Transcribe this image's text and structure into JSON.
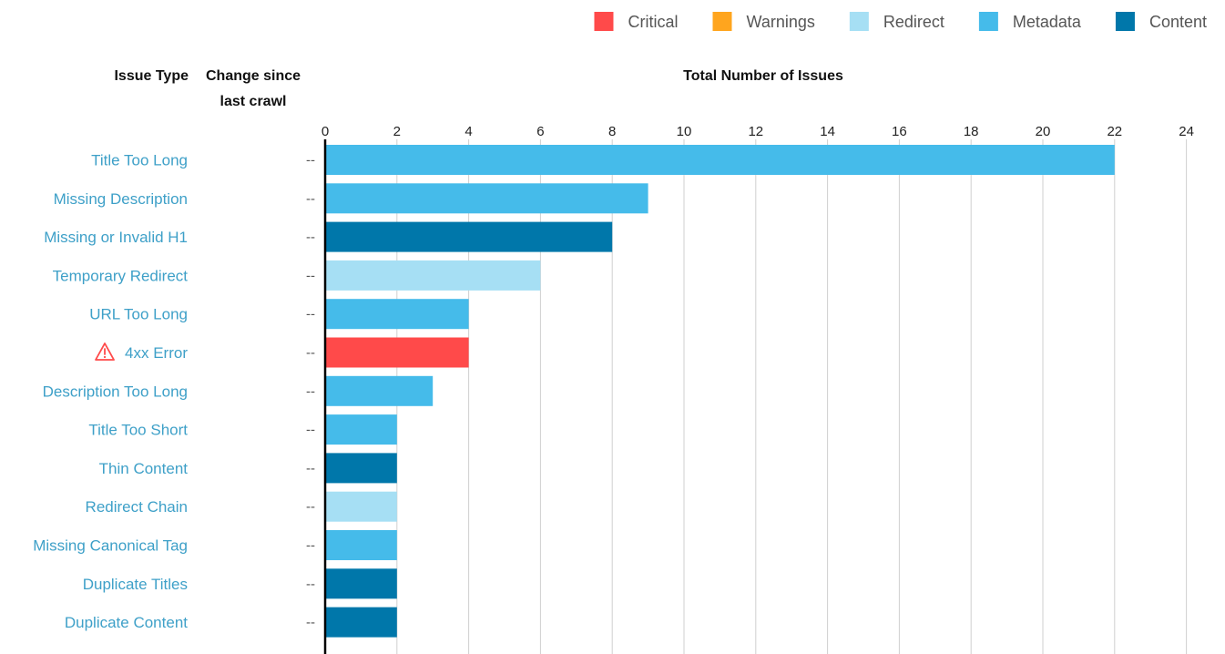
{
  "legend": [
    {
      "label": "Critical",
      "color": "#ff4a4a"
    },
    {
      "label": "Warnings",
      "color": "#ffa51e"
    },
    {
      "label": "Redirect",
      "color": "#a6dff4"
    },
    {
      "label": "Metadata",
      "color": "#45bbea"
    },
    {
      "label": "Content",
      "color": "#0077aa"
    }
  ],
  "headers": {
    "issue_type": "Issue Type",
    "change_line1": "Change since",
    "change_line2": "last crawl",
    "total": "Total Number of Issues"
  },
  "chart_data": {
    "type": "bar",
    "orientation": "horizontal",
    "title": "",
    "xlabel": "Total Number of Issues",
    "ylabel": "Issue Type",
    "xlim": [
      0,
      24
    ],
    "xticks": [
      0,
      2,
      4,
      6,
      8,
      10,
      12,
      14,
      16,
      18,
      20,
      22,
      24
    ],
    "grid": true,
    "legend_position": "top-right",
    "categories": [
      "Title Too Long",
      "Missing Description",
      "Missing or Invalid H1",
      "Temporary Redirect",
      "URL Too Long",
      "4xx Error",
      "Description Too Long",
      "Title Too Short",
      "Thin Content",
      "Redirect Chain",
      "Missing Canonical Tag",
      "Duplicate Titles",
      "Duplicate Content"
    ],
    "values": [
      22,
      9,
      8,
      6,
      4,
      4,
      3,
      2,
      2,
      2,
      2,
      2,
      2
    ],
    "groups": [
      "Metadata",
      "Metadata",
      "Content",
      "Redirect",
      "Metadata",
      "Critical",
      "Metadata",
      "Metadata",
      "Content",
      "Redirect",
      "Metadata",
      "Content",
      "Content"
    ],
    "change_since_last_crawl": [
      "--",
      "--",
      "--",
      "--",
      "--",
      "--",
      "--",
      "--",
      "--",
      "--",
      "--",
      "--",
      "--"
    ],
    "warning_icon_rows": [
      "4xx Error"
    ]
  }
}
